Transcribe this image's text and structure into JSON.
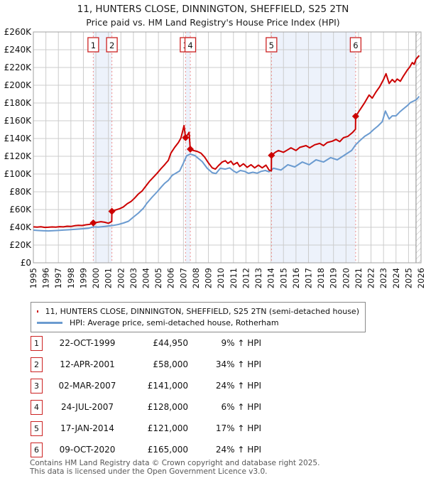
{
  "title": {
    "line1": "11, HUNTERS CLOSE, DINNINGTON, SHEFFIELD, S25 2TN",
    "line2": "Price paid vs. HM Land Registry's House Price Index (HPI)"
  },
  "colors": {
    "property_line": "#cc0000",
    "hpi_line": "#6b9bd0",
    "sale_dash": "#ee8e8e",
    "band_fill": "#edf2fb",
    "grid": "#cccccc",
    "plot_border": "#a0a0a0",
    "hatch": "#b5b5b5",
    "marker_box_border": "#cc2222",
    "text": "#111111"
  },
  "chart_data": {
    "type": "line",
    "title": "Price paid vs. HM Land Registry's House Price Index (HPI)",
    "xlabel": "",
    "ylabel": "",
    "x_range": [
      1995,
      2026
    ],
    "y_range": [
      0,
      260000
    ],
    "grid": true,
    "legend_position": "bottom",
    "x_tick_labels": [
      "1995",
      "1996",
      "1997",
      "1998",
      "1999",
      "2000",
      "2001",
      "2002",
      "2003",
      "2004",
      "2005",
      "2006",
      "2007",
      "2008",
      "2009",
      "2010",
      "2011",
      "2012",
      "2013",
      "2014",
      "2015",
      "2016",
      "2017",
      "2018",
      "2019",
      "2020",
      "2021",
      "2022",
      "2023",
      "2024",
      "2025",
      "2026"
    ],
    "y_tick_labels": [
      "£0",
      "£20K",
      "£40K",
      "£60K",
      "£80K",
      "£100K",
      "£120K",
      "£140K",
      "£160K",
      "£180K",
      "£200K",
      "£220K",
      "£240K",
      "£260K"
    ],
    "y_tick_step": 20000,
    "shaded_bands": [
      [
        1999.79,
        2001.28
      ],
      [
        2007.17,
        2007.55
      ],
      [
        2014.04,
        2020.77
      ]
    ],
    "hatch_from": 2025.6,
    "sales": [
      {
        "label": "1",
        "year": 1999.79,
        "price": 44950
      },
      {
        "label": "2",
        "year": 2001.28,
        "price": 58000
      },
      {
        "label": "3",
        "year": 2007.17,
        "price": 141000
      },
      {
        "label": "4",
        "year": 2007.55,
        "price": 128000
      },
      {
        "label": "5",
        "year": 2014.04,
        "price": 121000
      },
      {
        "label": "6",
        "year": 2020.77,
        "price": 165000
      }
    ],
    "series": [
      {
        "name": "11, HUNTERS CLOSE, DINNINGTON, SHEFFIELD, S25 2TN (semi-detached house)",
        "color": "#cc0000",
        "points": [
          [
            1995.0,
            40500
          ],
          [
            1995.3,
            40200
          ],
          [
            1995.6,
            40600
          ],
          [
            1995.9,
            39900
          ],
          [
            1996.2,
            40100
          ],
          [
            1996.5,
            40400
          ],
          [
            1996.8,
            40200
          ],
          [
            1997.1,
            40700
          ],
          [
            1997.4,
            40500
          ],
          [
            1997.7,
            41200
          ],
          [
            1998.0,
            41000
          ],
          [
            1998.3,
            41800
          ],
          [
            1998.6,
            42200
          ],
          [
            1998.9,
            42000
          ],
          [
            1999.2,
            42800
          ],
          [
            1999.5,
            43300
          ],
          [
            1999.79,
            44950
          ],
          [
            2000.1,
            45600
          ],
          [
            2000.4,
            46300
          ],
          [
            2000.7,
            45700
          ],
          [
            2001.0,
            44600
          ],
          [
            2001.27,
            46500
          ],
          [
            2001.28,
            58000
          ],
          [
            2001.6,
            59600
          ],
          [
            2001.9,
            61000
          ],
          [
            2002.2,
            63000
          ],
          [
            2002.5,
            66500
          ],
          [
            2002.8,
            69000
          ],
          [
            2003.1,
            73000
          ],
          [
            2003.4,
            77500
          ],
          [
            2003.7,
            81000
          ],
          [
            2004.0,
            86500
          ],
          [
            2004.3,
            92000
          ],
          [
            2004.6,
            96500
          ],
          [
            2004.9,
            101000
          ],
          [
            2005.2,
            106000
          ],
          [
            2005.5,
            110500
          ],
          [
            2005.8,
            115500
          ],
          [
            2006.0,
            123500
          ],
          [
            2006.3,
            130000
          ],
          [
            2006.6,
            135500
          ],
          [
            2006.8,
            140500
          ],
          [
            2007.05,
            154500
          ],
          [
            2007.17,
            141000
          ],
          [
            2007.3,
            143500
          ],
          [
            2007.45,
            147000
          ],
          [
            2007.55,
            128000
          ],
          [
            2007.8,
            126500
          ],
          [
            2008.1,
            125500
          ],
          [
            2008.4,
            123500
          ],
          [
            2008.7,
            119000
          ],
          [
            2009.0,
            112500
          ],
          [
            2009.3,
            107000
          ],
          [
            2009.55,
            105500
          ],
          [
            2009.8,
            109500
          ],
          [
            2010.1,
            113500
          ],
          [
            2010.35,
            115000
          ],
          [
            2010.55,
            112000
          ],
          [
            2010.8,
            114500
          ],
          [
            2011.0,
            110500
          ],
          [
            2011.3,
            113000
          ],
          [
            2011.5,
            108500
          ],
          [
            2011.8,
            111500
          ],
          [
            2012.1,
            107500
          ],
          [
            2012.4,
            110500
          ],
          [
            2012.7,
            107000
          ],
          [
            2013.0,
            110000
          ],
          [
            2013.3,
            107000
          ],
          [
            2013.6,
            110000
          ],
          [
            2013.85,
            104500
          ],
          [
            2014.03,
            103500
          ],
          [
            2014.04,
            121000
          ],
          [
            2014.35,
            124500
          ],
          [
            2014.6,
            126500
          ],
          [
            2015.0,
            124500
          ],
          [
            2015.3,
            127000
          ],
          [
            2015.6,
            129500
          ],
          [
            2016.0,
            126500
          ],
          [
            2016.3,
            130000
          ],
          [
            2016.8,
            132000
          ],
          [
            2017.1,
            129500
          ],
          [
            2017.5,
            133000
          ],
          [
            2017.9,
            134500
          ],
          [
            2018.2,
            132000
          ],
          [
            2018.5,
            135500
          ],
          [
            2018.9,
            137000
          ],
          [
            2019.2,
            139000
          ],
          [
            2019.5,
            136500
          ],
          [
            2019.8,
            141000
          ],
          [
            2020.16,
            142500
          ],
          [
            2020.5,
            146500
          ],
          [
            2020.76,
            150500
          ],
          [
            2020.77,
            165000
          ],
          [
            2021.1,
            172000
          ],
          [
            2021.5,
            180500
          ],
          [
            2021.85,
            189000
          ],
          [
            2022.1,
            185500
          ],
          [
            2022.4,
            192500
          ],
          [
            2022.7,
            198500
          ],
          [
            2023.0,
            206500
          ],
          [
            2023.2,
            213000
          ],
          [
            2023.45,
            202000
          ],
          [
            2023.7,
            206500
          ],
          [
            2023.9,
            203500
          ],
          [
            2024.1,
            207000
          ],
          [
            2024.35,
            204500
          ],
          [
            2024.6,
            210500
          ],
          [
            2024.9,
            217000
          ],
          [
            2025.1,
            220500
          ],
          [
            2025.3,
            225500
          ],
          [
            2025.45,
            223500
          ],
          [
            2025.6,
            229500
          ],
          [
            2025.85,
            233500
          ]
        ]
      },
      {
        "name": "HPI: Average price, semi-detached house, Rotherham",
        "color": "#6b9bd0",
        "points": [
          [
            1995.0,
            36800
          ],
          [
            1995.4,
            36400
          ],
          [
            1995.8,
            36100
          ],
          [
            1996.2,
            35900
          ],
          [
            1996.6,
            36200
          ],
          [
            1997.0,
            36500
          ],
          [
            1997.4,
            36900
          ],
          [
            1997.8,
            37200
          ],
          [
            1998.2,
            37600
          ],
          [
            1998.6,
            38000
          ],
          [
            1999.0,
            38400
          ],
          [
            1999.4,
            38900
          ],
          [
            1999.79,
            40500
          ],
          [
            2000.2,
            40200
          ],
          [
            2000.6,
            40800
          ],
          [
            2001.0,
            41500
          ],
          [
            2001.4,
            42200
          ],
          [
            2001.8,
            43200
          ],
          [
            2002.2,
            44800
          ],
          [
            2002.6,
            46800
          ],
          [
            2003.0,
            51500
          ],
          [
            2003.4,
            56000
          ],
          [
            2003.8,
            61500
          ],
          [
            2004.1,
            67500
          ],
          [
            2004.5,
            74000
          ],
          [
            2004.9,
            80000
          ],
          [
            2005.2,
            85000
          ],
          [
            2005.5,
            89500
          ],
          [
            2005.8,
            93000
          ],
          [
            2006.1,
            98500
          ],
          [
            2006.4,
            101000
          ],
          [
            2006.7,
            103500
          ],
          [
            2007.0,
            112500
          ],
          [
            2007.25,
            120500
          ],
          [
            2007.55,
            122500
          ],
          [
            2007.9,
            121000
          ],
          [
            2008.2,
            117500
          ],
          [
            2008.5,
            114000
          ],
          [
            2008.9,
            106500
          ],
          [
            2009.3,
            101500
          ],
          [
            2009.6,
            100500
          ],
          [
            2009.95,
            106500
          ],
          [
            2010.35,
            105500
          ],
          [
            2010.7,
            107000
          ],
          [
            2011.0,
            103500
          ],
          [
            2011.25,
            101500
          ],
          [
            2011.55,
            104000
          ],
          [
            2011.9,
            103000
          ],
          [
            2012.2,
            100800
          ],
          [
            2012.55,
            102000
          ],
          [
            2012.9,
            101000
          ],
          [
            2013.2,
            103000
          ],
          [
            2013.55,
            104000
          ],
          [
            2013.85,
            102500
          ],
          [
            2014.2,
            106500
          ],
          [
            2014.8,
            104500
          ],
          [
            2015.35,
            110500
          ],
          [
            2015.9,
            108000
          ],
          [
            2016.5,
            113500
          ],
          [
            2017.05,
            110500
          ],
          [
            2017.6,
            116000
          ],
          [
            2018.2,
            113500
          ],
          [
            2018.77,
            118500
          ],
          [
            2019.3,
            116000
          ],
          [
            2019.9,
            121500
          ],
          [
            2020.45,
            126500
          ],
          [
            2020.77,
            133000
          ],
          [
            2021.1,
            137500
          ],
          [
            2021.5,
            142500
          ],
          [
            2021.9,
            146000
          ],
          [
            2022.2,
            150000
          ],
          [
            2022.55,
            154000
          ],
          [
            2022.9,
            159000
          ],
          [
            2023.15,
            171000
          ],
          [
            2023.45,
            162000
          ],
          [
            2023.7,
            165500
          ],
          [
            2024.0,
            165500
          ],
          [
            2024.3,
            170000
          ],
          [
            2024.6,
            173500
          ],
          [
            2024.9,
            177000
          ],
          [
            2025.15,
            180500
          ],
          [
            2025.45,
            182500
          ],
          [
            2025.65,
            184000
          ],
          [
            2025.85,
            187500
          ]
        ]
      }
    ]
  },
  "legend": {
    "items": [
      {
        "label": "11, HUNTERS CLOSE, DINNINGTON, SHEFFIELD, S25 2TN (semi-detached house)",
        "color": "#cc0000"
      },
      {
        "label": "HPI: Average price, semi-detached house, Rotherham",
        "color": "#6b9bd0"
      }
    ]
  },
  "table": {
    "rows": [
      {
        "num": "1",
        "date": "22-OCT-1999",
        "price": "£44,950",
        "delta": "9% ↑ HPI"
      },
      {
        "num": "2",
        "date": "12-APR-2001",
        "price": "£58,000",
        "delta": "34% ↑ HPI"
      },
      {
        "num": "3",
        "date": "02-MAR-2007",
        "price": "£141,000",
        "delta": "24% ↑ HPI"
      },
      {
        "num": "4",
        "date": "24-JUL-2007",
        "price": "£128,000",
        "delta": "6% ↑ HPI"
      },
      {
        "num": "5",
        "date": "17-JAN-2014",
        "price": "£121,000",
        "delta": "17% ↑ HPI"
      },
      {
        "num": "6",
        "date": "09-OCT-2020",
        "price": "£165,000",
        "delta": "24% ↑ HPI"
      }
    ]
  },
  "footer": {
    "line1": "Contains HM Land Registry data © Crown copyright and database right 2025.",
    "line2": "This data is licensed under the Open Government Licence v3.0."
  }
}
